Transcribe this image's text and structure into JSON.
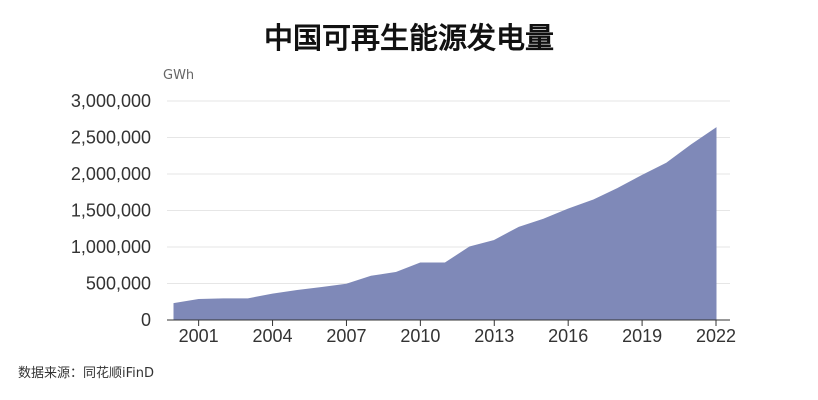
{
  "chart_data": {
    "type": "area",
    "title": "中国可再生能源发电量",
    "y_unit": "GWh",
    "xlabel": "",
    "ylabel": "",
    "x": [
      2000,
      2001,
      2002,
      2003,
      2004,
      2005,
      2006,
      2007,
      2008,
      2009,
      2010,
      2011,
      2012,
      2013,
      2014,
      2015,
      2016,
      2017,
      2018,
      2019,
      2020,
      2021,
      2022
    ],
    "series": [
      {
        "name": "",
        "values": [
          225000,
          280000,
          290000,
          290000,
          355000,
          405000,
          445000,
          490000,
          600000,
          650000,
          780000,
          780000,
          1000000,
          1090000,
          1270000,
          1380000,
          1520000,
          1640000,
          1800000,
          1980000,
          2150000,
          2400000,
          2630000
        ]
      }
    ],
    "ylim": [
      0,
      3000000
    ],
    "y_ticks": [
      0,
      500000,
      1000000,
      1500000,
      2000000,
      2500000,
      3000000
    ],
    "y_tick_labels": [
      "0",
      "500,000",
      "1,000,000",
      "1,500,000",
      "2,000,000",
      "2,500,000",
      "3,000,000"
    ],
    "x_ticks": [
      2001,
      2004,
      2007,
      2010,
      2013,
      2016,
      2019,
      2022
    ],
    "x_tick_labels": [
      "2001",
      "2004",
      "2007",
      "2010",
      "2013",
      "2016",
      "2019",
      "2022"
    ],
    "grid": true,
    "legend": "none",
    "fill_color": "#7f89b8"
  },
  "source_note": "数据来源：同花顺iFinD"
}
